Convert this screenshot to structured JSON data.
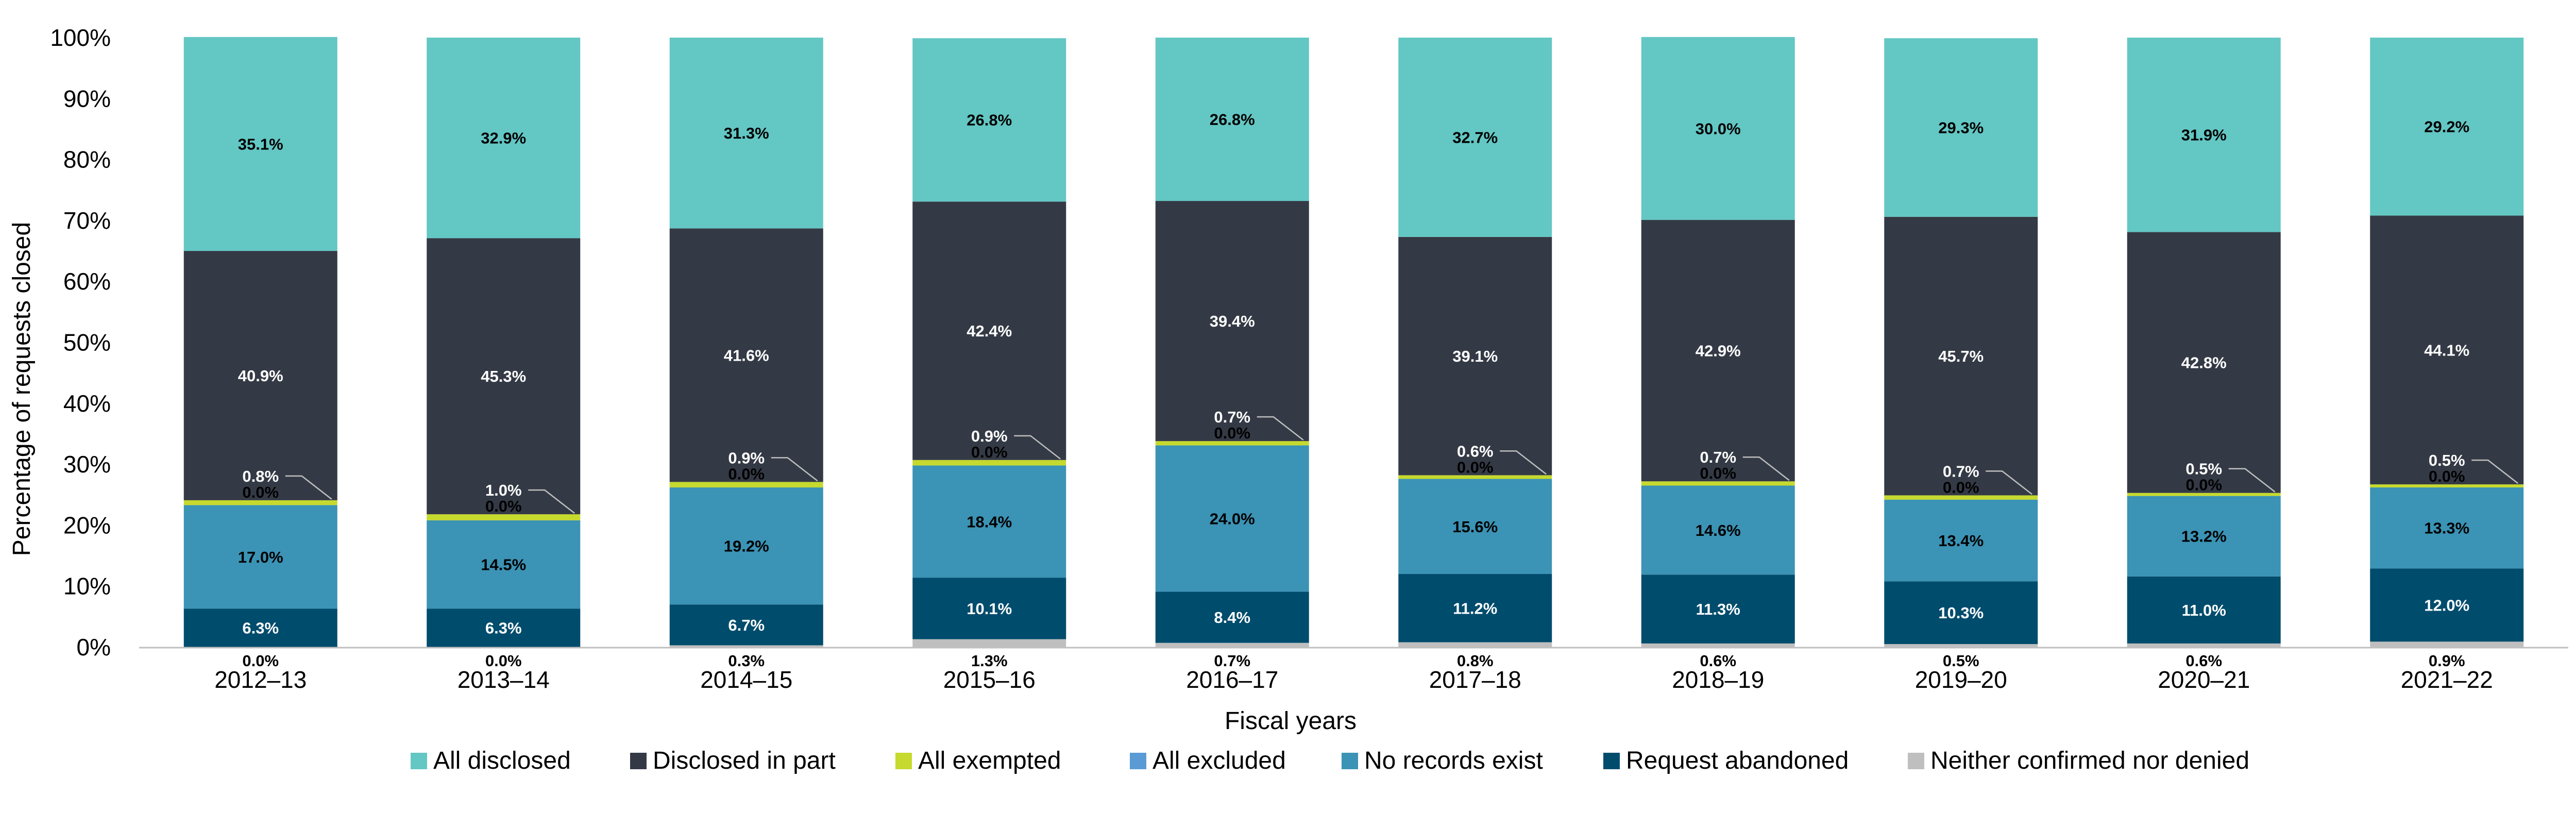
{
  "chart_data": {
    "type": "bar",
    "stacked": true,
    "xlabel": "Fiscal years",
    "ylabel": "Percentage of requests closed",
    "ylim": [
      0,
      100
    ],
    "y_ticks": [
      "0%",
      "10%",
      "20%",
      "30%",
      "40%",
      "50%",
      "60%",
      "70%",
      "80%",
      "90%",
      "100%"
    ],
    "grid": false,
    "legend_position": "bottom",
    "categories": [
      "2012–13",
      "2013–14",
      "2014–15",
      "2015–16",
      "2016–17",
      "2017–18",
      "2018–19",
      "2019–20",
      "2020–21",
      "2021–22"
    ],
    "series": [
      {
        "name": "Neither confirmed nor denied",
        "color": "#bfbfbf",
        "values": [
          0.0,
          0.0,
          0.3,
          1.3,
          0.7,
          0.8,
          0.6,
          0.5,
          0.6,
          0.9
        ],
        "labels": [
          "0.0%",
          "0.0%",
          "0.3%",
          "1.3%",
          "0.7%",
          "0.8%",
          "0.6%",
          "0.5%",
          "0.6%",
          "0.9%"
        ]
      },
      {
        "name": "Request abandoned",
        "color": "#004c6d",
        "values": [
          6.3,
          6.3,
          6.7,
          10.1,
          8.4,
          11.2,
          11.3,
          10.3,
          11.0,
          12.0
        ],
        "labels": [
          "6.3%",
          "6.3%",
          "6.7%",
          "10.1%",
          "8.4%",
          "11.2%",
          "11.3%",
          "10.3%",
          "11.0%",
          "12.0%"
        ]
      },
      {
        "name": "No records exist",
        "color": "#3b93b5",
        "values": [
          17.0,
          14.5,
          19.2,
          18.4,
          24.0,
          15.6,
          14.6,
          13.4,
          13.2,
          13.3
        ],
        "labels": [
          "17.0%",
          "14.5%",
          "19.2%",
          "18.4%",
          "24.0%",
          "15.6%",
          "14.6%",
          "13.4%",
          "13.2%",
          "13.3%"
        ]
      },
      {
        "name": "All excluded",
        "color": "#5b9bd5",
        "values": [
          0.0,
          0.0,
          0.0,
          0.0,
          0.0,
          0.0,
          0.0,
          0.0,
          0.0,
          0.0
        ],
        "labels": [
          "0.0%",
          "0.0%",
          "0.0%",
          "0.0%",
          "0.0%",
          "0.0%",
          "0.0%",
          "0.0%",
          "0.0%",
          "0.0%"
        ]
      },
      {
        "name": "All exempted",
        "color": "#c6d92e",
        "values": [
          0.8,
          1.0,
          0.9,
          0.9,
          0.7,
          0.6,
          0.7,
          0.7,
          0.5,
          0.5
        ],
        "labels": [
          "0.8%",
          "1.0%",
          "0.9%",
          "0.9%",
          "0.7%",
          "0.6%",
          "0.7%",
          "0.7%",
          "0.5%",
          "0.5%"
        ]
      },
      {
        "name": "Disclosed in part",
        "color": "#343a45",
        "values": [
          40.9,
          45.3,
          41.6,
          42.4,
          39.4,
          39.1,
          42.9,
          45.7,
          42.8,
          44.1
        ],
        "labels": [
          "40.9%",
          "45.3%",
          "41.6%",
          "42.4%",
          "39.4%",
          "39.1%",
          "42.9%",
          "45.7%",
          "42.8%",
          "44.1%"
        ]
      },
      {
        "name": "All disclosed",
        "color": "#63c7c4",
        "values": [
          35.1,
          32.9,
          31.3,
          26.8,
          26.8,
          32.7,
          30.0,
          29.3,
          31.9,
          29.2
        ],
        "labels": [
          "35.1%",
          "32.9%",
          "31.3%",
          "26.8%",
          "26.8%",
          "32.7%",
          "30.0%",
          "29.3%",
          "31.9%",
          "29.2%"
        ]
      }
    ],
    "legend_order": [
      "All disclosed",
      "Disclosed in part",
      "All exempted",
      "All excluded",
      "No records exist",
      "Request abandoned",
      "Neither confirmed nor denied"
    ]
  }
}
